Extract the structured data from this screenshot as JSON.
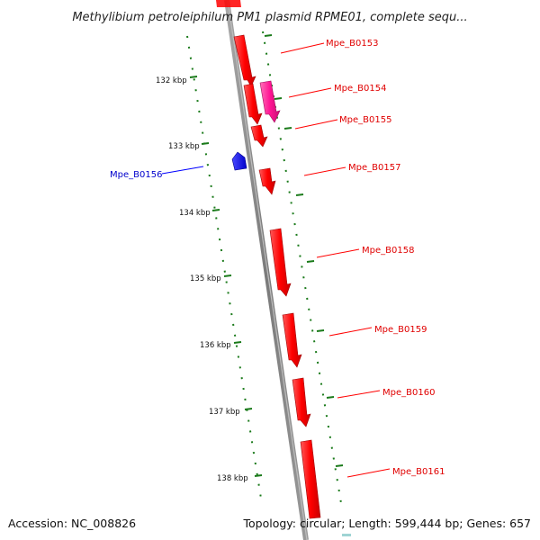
{
  "title": "Methylibium petroleiphilum PM1 plasmid RPME01, complete sequ...",
  "footer": {
    "accession": "Accession: NC_008826",
    "summary": "Topology: circular; Length: 599,444 bp; Genes: 657"
  },
  "colors": {
    "forward_gene": "#ff0000",
    "forward_gene_alt": "#ff1493",
    "reverse_gene": "#0000ff",
    "backbone": "#808080",
    "ticks": "#1a7a1a"
  },
  "ticks": [
    {
      "label": "132 kbp"
    },
    {
      "label": "133 kbp"
    },
    {
      "label": "134 kbp"
    },
    {
      "label": "135 kbp"
    },
    {
      "label": "136 kbp"
    },
    {
      "label": "137 kbp"
    },
    {
      "label": "138 kbp"
    }
  ],
  "genes": [
    {
      "name": "Mpe_B0153",
      "strand": "+"
    },
    {
      "name": "Mpe_B0154",
      "strand": "+"
    },
    {
      "name": "Mpe_B0155",
      "strand": "+"
    },
    {
      "name": "Mpe_B0156",
      "strand": "-"
    },
    {
      "name": "Mpe_B0157",
      "strand": "+"
    },
    {
      "name": "Mpe_B0158",
      "strand": "+"
    },
    {
      "name": "Mpe_B0159",
      "strand": "+"
    },
    {
      "name": "Mpe_B0160",
      "strand": "+"
    },
    {
      "name": "Mpe_B0161",
      "strand": "+"
    }
  ]
}
